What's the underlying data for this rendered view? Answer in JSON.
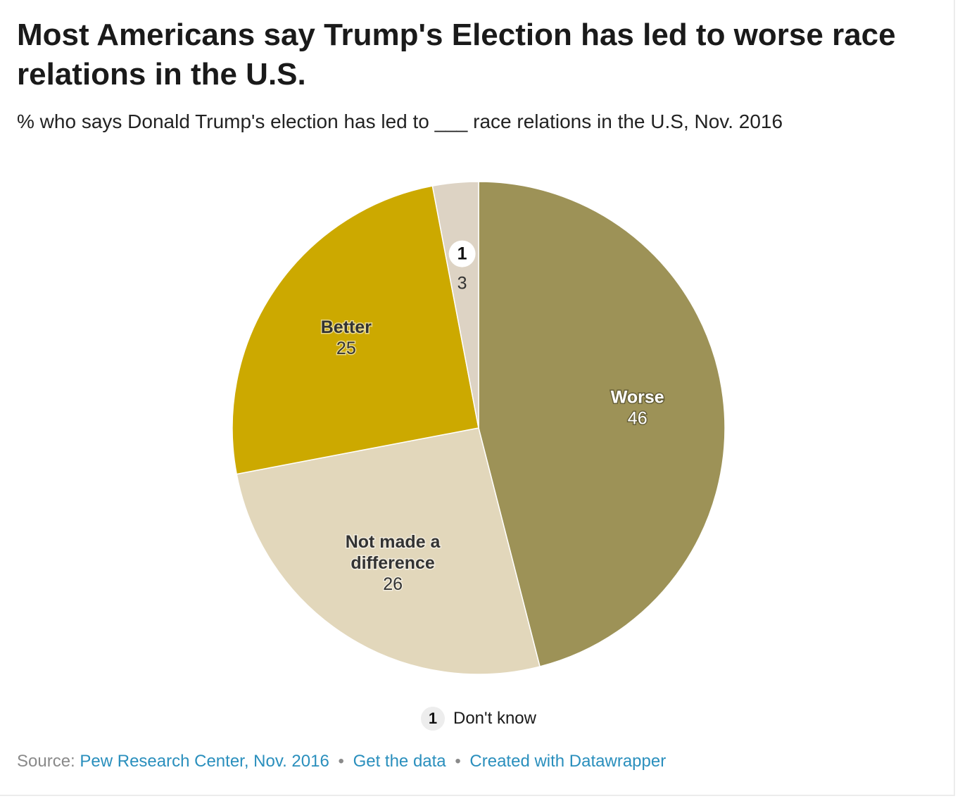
{
  "title": "Most Americans say Trump's Election has led to worse race relations in the U.S.",
  "subtitle": "% who says Donald Trump's election has led to ___ race relations in the U.S, Nov. 2016",
  "chart_data": {
    "type": "pie",
    "title": "Most Americans say Trump's Election has led to worse race relations in the U.S.",
    "subtitle": "% who says Donald Trump's election has led to ___ race relations in the U.S, Nov. 2016",
    "categories": [
      "Worse",
      "Not made a difference",
      "Better",
      "Don't know"
    ],
    "values": [
      46,
      26,
      25,
      3
    ],
    "colors": [
      "#9d9257",
      "#e2d7bb",
      "#cca900",
      "#ddd3c4"
    ],
    "label_colors": [
      "#ffffff",
      "#333333",
      "#333333",
      "#333333"
    ],
    "label_lines": [
      [
        "Worse"
      ],
      [
        "Not made a",
        "difference"
      ],
      [
        "Better"
      ],
      []
    ],
    "footnote_marker": "1",
    "footnote_slice": "Don't know"
  },
  "legend": {
    "marker": "1",
    "text": "Don't know"
  },
  "footer": {
    "source_prefix": "Source:",
    "source_link": "Pew Research Center, Nov. 2016",
    "separator": "•",
    "data_link": "Get the data",
    "credit_link": "Created with Datawrapper"
  }
}
